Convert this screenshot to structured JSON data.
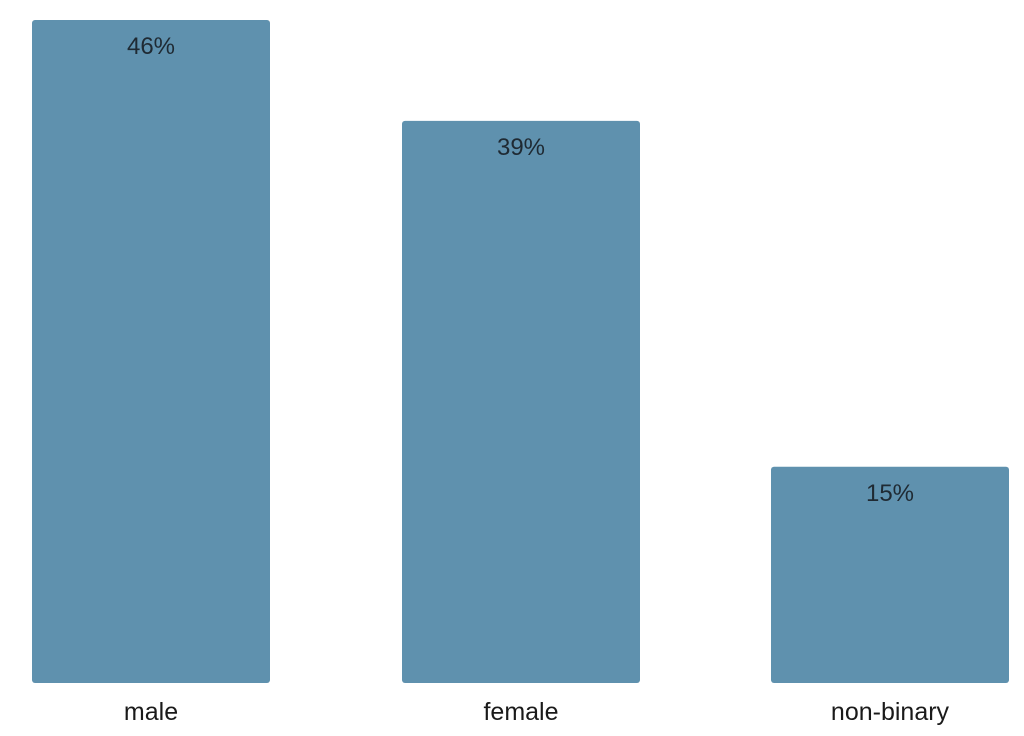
{
  "chart_data": {
    "type": "bar",
    "categories": [
      "male",
      "female",
      "non-binary"
    ],
    "values": [
      46,
      39,
      15
    ],
    "value_labels": [
      "46%",
      "39%",
      "15%"
    ],
    "unit": "%",
    "ylim": [
      0,
      46
    ],
    "grid": false,
    "legend": "none",
    "bar_color": "#5f91ae"
  }
}
